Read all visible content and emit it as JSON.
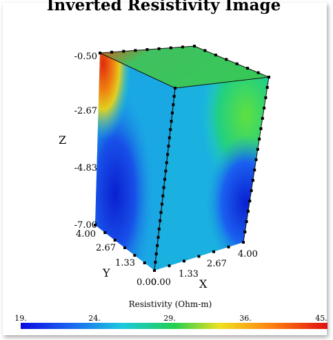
{
  "chart_data": {
    "type": "heatmap",
    "title": "Inverted Resistivity Image",
    "axes": {
      "z": {
        "label": "Z",
        "ticks": [
          "-0.50",
          "-2.67",
          "-4.83",
          "-7.00"
        ]
      },
      "y": {
        "label": "Y",
        "ticks": [
          "4.00",
          "2.67",
          "1.33",
          "0.00"
        ]
      },
      "x": {
        "label": "X",
        "ticks": [
          "0.00",
          "1.33",
          "2.67",
          "4.00"
        ]
      }
    },
    "colorbar": {
      "label": "Resistivity (Ohm-m)",
      "ticks": [
        "19.",
        "24.",
        "29.",
        "36.",
        "45."
      ],
      "range": [
        19,
        45
      ],
      "colors": [
        "#0a0ae0",
        "#1a5ef0",
        "#1bc8e0",
        "#22d050",
        "#f0e020",
        "#ff8010",
        "#e01010"
      ]
    }
  }
}
